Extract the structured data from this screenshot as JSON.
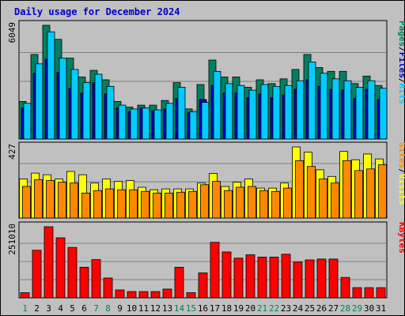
{
  "title": "Daily usage for December 2024",
  "chart_data": {
    "type": "bar",
    "title": "Daily usage for December 2024",
    "categories": [
      "1",
      "2",
      "3",
      "4",
      "5",
      "6",
      "7",
      "8",
      "9",
      "10",
      "11",
      "12",
      "13",
      "14",
      "15",
      "16",
      "17",
      "18",
      "19",
      "20",
      "21",
      "22",
      "23",
      "24",
      "25",
      "26",
      "27",
      "28",
      "29",
      "30",
      "31"
    ],
    "weekend_days": [
      "1",
      "7",
      "8",
      "14",
      "15",
      "21",
      "22",
      "28",
      "29"
    ],
    "colors": {
      "hits": "#00ccff",
      "files": "#0000cc",
      "pages": "#008060",
      "visits": "#ffff00",
      "sites": "#ff8800",
      "kbytes": "#ff0000",
      "weekday_label": "#000000",
      "weekend_label": "#008060",
      "background": "#c0c0c0"
    },
    "panels": [
      {
        "name": "hits-files-pages",
        "max_label": "6049",
        "ymax": 6049,
        "side_label": [
          "Pages",
          "/",
          "Files",
          "/",
          "Hits"
        ],
        "side_colors": [
          "#008060",
          "#000000",
          "#0000cc",
          "#000000",
          "#00ccff"
        ],
        "series": [
          {
            "name": "Pages",
            "color": "#008060",
            "values": [
              2000,
              4500,
              6049,
              5300,
              4300,
              3300,
              3650,
              3150,
              2000,
              1700,
              1800,
              1800,
              2050,
              3000,
              1600,
              2900,
              4200,
              3300,
              3300,
              2750,
              3150,
              2950,
              3200,
              3700,
              4500,
              3800,
              3600,
              3600,
              2950,
              3350,
              2850
            ]
          },
          {
            "name": "Files",
            "color": "#0000cc",
            "values": [
              1650,
              3500,
              4250,
              3550,
              2700,
              2450,
              3000,
              2400,
              1650,
              1450,
              1650,
              1500,
              1600,
              2150,
              1400,
              2100,
              2850,
              2450,
              2450,
              2200,
              2400,
              2200,
              2350,
              2650,
              3150,
              2800,
              2650,
              2600,
              2150,
              2650,
              2100
            ]
          },
          {
            "name": "Hits",
            "color": "#00ccff",
            "values": [
              1900,
              4000,
              5700,
              4300,
              3700,
              3000,
              3450,
              2800,
              1800,
              1600,
              1650,
              1550,
              1900,
              2750,
              1450,
              1950,
              3600,
              2950,
              2850,
              2600,
              2900,
              2800,
              2850,
              3100,
              4100,
              3500,
              3200,
              3100,
              2750,
              3100,
              2700
            ]
          }
        ]
      },
      {
        "name": "visits-sites",
        "max_label": "427",
        "ymax": 427,
        "side_label": [
          "Sites",
          "/",
          "Visits"
        ],
        "side_colors": [
          "#ff8800",
          "#000000",
          "#ffff00"
        ],
        "series": [
          {
            "name": "Visits",
            "color": "#ffff00",
            "values": [
              235,
              270,
              260,
              235,
              280,
              260,
              210,
              235,
              220,
              225,
              185,
              170,
              175,
              175,
              175,
              210,
              268,
              190,
              215,
              235,
              180,
              180,
              210,
              427,
              395,
              290,
              250,
              400,
              350,
              385,
              355
            ]
          },
          {
            "name": "Sites",
            "color": "#ff8800",
            "values": [
              190,
              230,
              225,
              215,
              210,
              150,
              165,
              175,
              170,
              170,
              160,
              150,
              150,
              155,
              160,
              200,
              220,
              165,
              185,
              190,
              165,
              160,
              180,
              345,
              310,
              235,
              210,
              345,
              285,
              295,
              320
            ]
          }
        ]
      },
      {
        "name": "kbytes",
        "max_label": "251010",
        "ymax": 251010,
        "side_label": [
          "KBytes"
        ],
        "side_colors": [
          "#ff0000"
        ],
        "series": [
          {
            "name": "KBytes",
            "color": "#ff0000",
            "values": [
              18000,
              168000,
              251010,
              212000,
              178000,
              108000,
              135000,
              70000,
              28000,
              22000,
              22000,
              22000,
              31000,
              108000,
              18000,
              88000,
              196000,
              162000,
              140000,
              152000,
              144000,
              144000,
              154000,
              126000,
              134000,
              137000,
              137000,
              72000,
              36000,
              36000,
              36000
            ]
          }
        ]
      }
    ]
  }
}
